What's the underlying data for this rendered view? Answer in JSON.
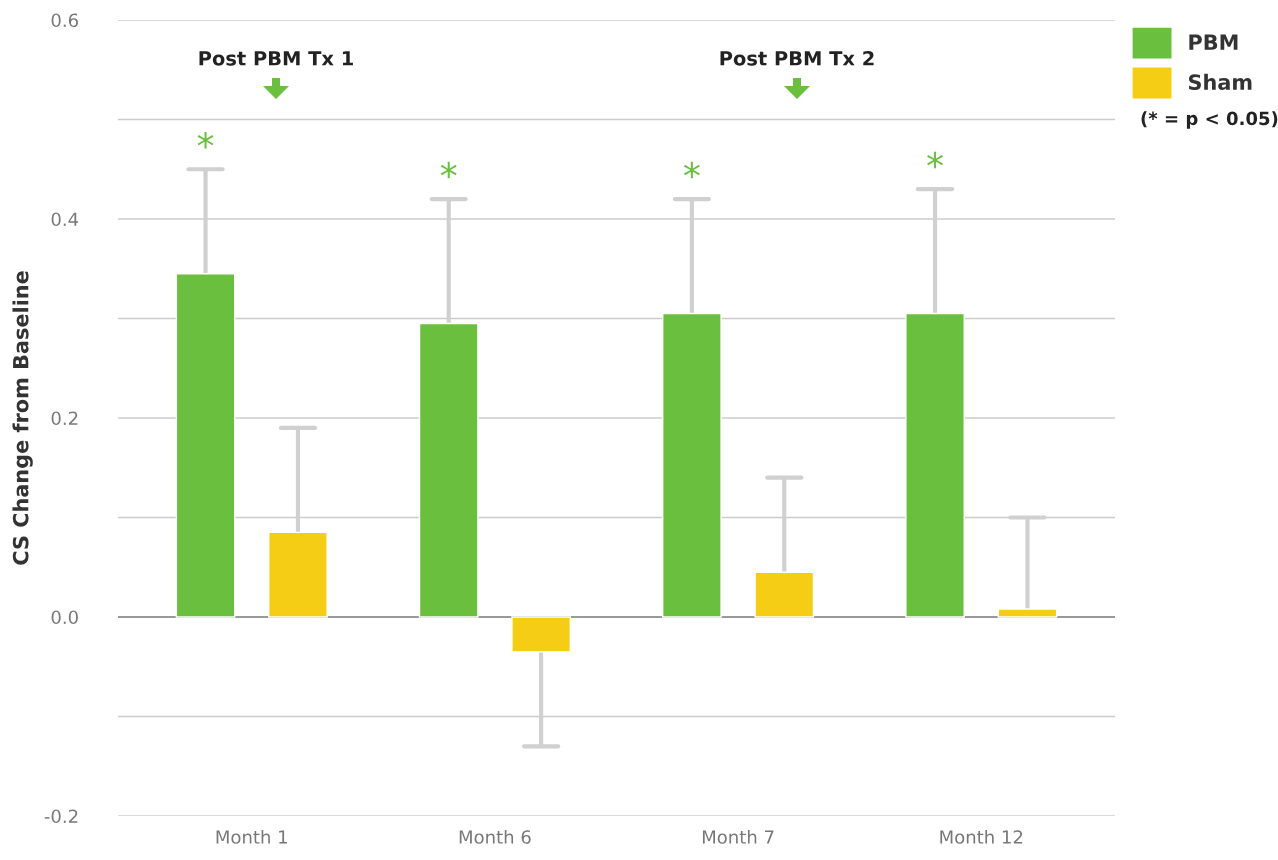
{
  "chart_data": {
    "type": "bar",
    "ylabel": "CS Change from Baseline",
    "categories": [
      "Month 1",
      "Month 6",
      "Month 7",
      "Month 12"
    ],
    "series": [
      {
        "name": "PBM",
        "color": "#6abf3f",
        "values": [
          0.345,
          0.295,
          0.305,
          0.305
        ],
        "errors": [
          [
            0.345,
            0.45
          ],
          [
            0.295,
            0.42
          ],
          [
            0.305,
            0.42
          ],
          [
            0.305,
            0.43
          ]
        ]
      },
      {
        "name": "Sham",
        "color": "#f5cd14",
        "values": [
          0.085,
          -0.035,
          0.045,
          0.008
        ],
        "errors": [
          [
            0.085,
            0.19
          ],
          [
            -0.13,
            -0.035
          ],
          [
            0.045,
            0.14
          ],
          [
            0.008,
            0.1
          ]
        ]
      }
    ],
    "ylim": [
      -0.2,
      0.6
    ],
    "yticks": [
      -0.2,
      {
        "value": -0.1,
        "label": null
      },
      "0.0",
      {
        "value": 0.1,
        "label": null
      },
      0.2,
      {
        "value": 0.3,
        "label": null
      },
      0.4,
      {
        "value": 0.5,
        "label": null
      },
      0.6
    ],
    "grid": "y",
    "legend": "top right",
    "annotations": [
      "Post PBM Tx 1",
      "Post PBM Tx 2",
      "(* = p < 0.05)",
      "*",
      "*",
      "*",
      "*"
    ]
  }
}
